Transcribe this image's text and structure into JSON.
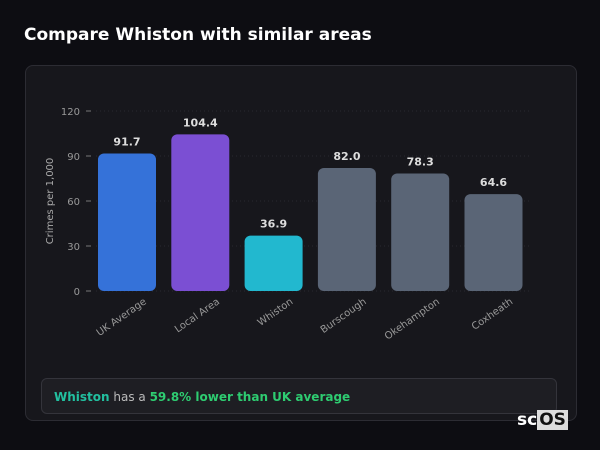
{
  "title": "Compare Whiston with similar areas",
  "chart_data": {
    "type": "bar",
    "categories": [
      "UK Average",
      "Local Area",
      "Whiston",
      "Burscough",
      "Okehampton",
      "Coxheath"
    ],
    "values": [
      91.7,
      104.4,
      36.9,
      82.0,
      78.3,
      64.6
    ],
    "colors": [
      "#3572d9",
      "#7b4fd3",
      "#22b8cf",
      "#5a6576",
      "#5a6576",
      "#5a6576"
    ],
    "ylabel": "Crimes per 1,000",
    "ylim": [
      0,
      120
    ],
    "yticks": [
      0,
      30,
      60,
      90,
      120
    ],
    "grid": true
  },
  "summary": {
    "area": "Whiston",
    "middle": " has a ",
    "highlight": "59.8% lower than UK average"
  },
  "logo": {
    "left": "sc",
    "right": "OS"
  }
}
